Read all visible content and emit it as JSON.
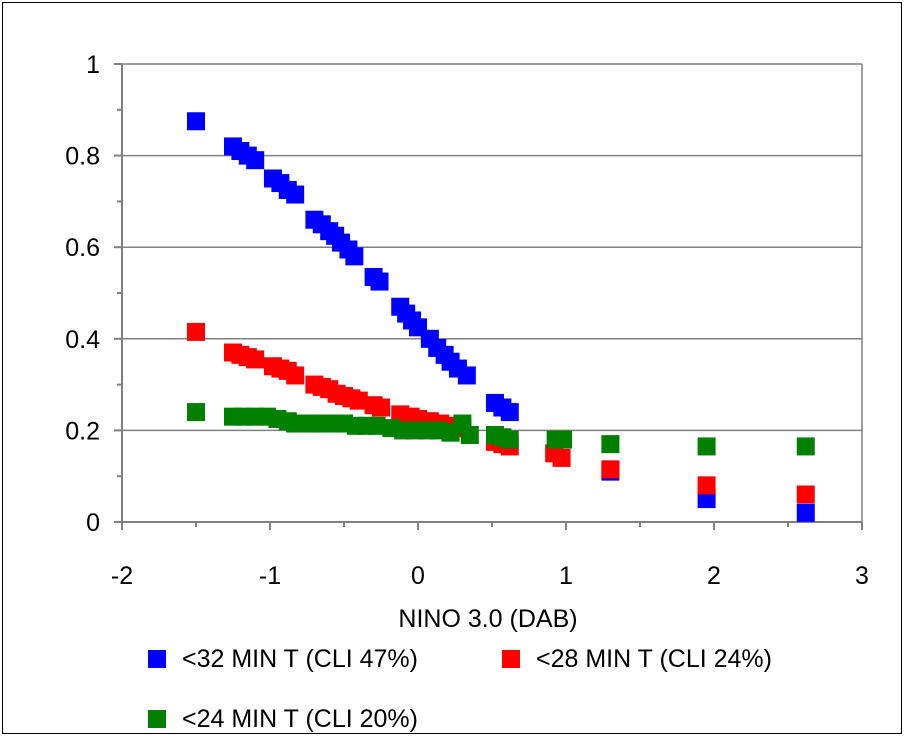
{
  "chart_data": {
    "type": "scatter",
    "title": "",
    "xlabel": "NINO 3.0 (DAB)",
    "ylabel": "",
    "xlim": [
      -2,
      3
    ],
    "ylim": [
      0,
      1
    ],
    "x_ticks": [
      "-2",
      "-1",
      "0",
      "1",
      "2",
      "3"
    ],
    "y_ticks": [
      "0",
      "0.2",
      "0.4",
      "0.6",
      "0.8",
      "1"
    ],
    "grid": "horizontal",
    "legend_position": "bottom",
    "series": [
      {
        "name": "<32 MIN T (CLI 47%)",
        "color": "#0000ff",
        "points": [
          [
            -1.5,
            0.875
          ],
          [
            -1.25,
            0.82
          ],
          [
            -1.2,
            0.81
          ],
          [
            -1.15,
            0.8
          ],
          [
            -1.1,
            0.79
          ],
          [
            -0.98,
            0.75
          ],
          [
            -0.93,
            0.74
          ],
          [
            -0.88,
            0.725
          ],
          [
            -0.83,
            0.715
          ],
          [
            -0.7,
            0.66
          ],
          [
            -0.65,
            0.65
          ],
          [
            -0.6,
            0.635
          ],
          [
            -0.56,
            0.625
          ],
          [
            -0.52,
            0.61
          ],
          [
            -0.47,
            0.595
          ],
          [
            -0.43,
            0.58
          ],
          [
            -0.3,
            0.535
          ],
          [
            -0.26,
            0.525
          ],
          [
            -0.12,
            0.47
          ],
          [
            -0.08,
            0.455
          ],
          [
            -0.04,
            0.44
          ],
          [
            0.0,
            0.425
          ],
          [
            0.08,
            0.4
          ],
          [
            0.13,
            0.38
          ],
          [
            0.18,
            0.365
          ],
          [
            0.22,
            0.35
          ],
          [
            0.27,
            0.335
          ],
          [
            0.33,
            0.32
          ],
          [
            0.52,
            0.26
          ],
          [
            0.57,
            0.25
          ],
          [
            0.62,
            0.24
          ],
          [
            1.3,
            0.11
          ],
          [
            1.95,
            0.05
          ],
          [
            2.62,
            0.02
          ]
        ]
      },
      {
        "name": "<28 MIN T (CLI 24%)",
        "color": "#ff0000",
        "points": [
          [
            -1.5,
            0.415
          ],
          [
            -1.25,
            0.37
          ],
          [
            -1.2,
            0.365
          ],
          [
            -1.15,
            0.36
          ],
          [
            -1.1,
            0.355
          ],
          [
            -0.98,
            0.34
          ],
          [
            -0.93,
            0.335
          ],
          [
            -0.88,
            0.33
          ],
          [
            -0.83,
            0.32
          ],
          [
            -0.7,
            0.3
          ],
          [
            -0.65,
            0.295
          ],
          [
            -0.6,
            0.29
          ],
          [
            -0.55,
            0.28
          ],
          [
            -0.5,
            0.275
          ],
          [
            -0.45,
            0.27
          ],
          [
            -0.4,
            0.265
          ],
          [
            -0.3,
            0.255
          ],
          [
            -0.25,
            0.25
          ],
          [
            -0.12,
            0.235
          ],
          [
            -0.05,
            0.23
          ],
          [
            0.0,
            0.225
          ],
          [
            0.08,
            0.22
          ],
          [
            0.15,
            0.215
          ],
          [
            0.22,
            0.21
          ],
          [
            0.3,
            0.205
          ],
          [
            0.52,
            0.175
          ],
          [
            0.57,
            0.17
          ],
          [
            0.62,
            0.165
          ],
          [
            0.92,
            0.15
          ],
          [
            0.97,
            0.14
          ],
          [
            1.3,
            0.115
          ],
          [
            1.95,
            0.08
          ],
          [
            2.62,
            0.06
          ]
        ]
      },
      {
        "name": "<24 MIN T (CLI 20%)",
        "color": "#008000",
        "points": [
          [
            -1.5,
            0.24
          ],
          [
            -1.25,
            0.23
          ],
          [
            -1.18,
            0.23
          ],
          [
            -1.1,
            0.23
          ],
          [
            -1.02,
            0.23
          ],
          [
            -0.95,
            0.225
          ],
          [
            -0.88,
            0.22
          ],
          [
            -0.83,
            0.215
          ],
          [
            -0.72,
            0.215
          ],
          [
            -0.65,
            0.215
          ],
          [
            -0.58,
            0.215
          ],
          [
            -0.5,
            0.215
          ],
          [
            -0.42,
            0.21
          ],
          [
            -0.35,
            0.21
          ],
          [
            -0.28,
            0.21
          ],
          [
            -0.18,
            0.205
          ],
          [
            -0.1,
            0.2
          ],
          [
            -0.02,
            0.2
          ],
          [
            0.06,
            0.2
          ],
          [
            0.14,
            0.2
          ],
          [
            0.22,
            0.195
          ],
          [
            0.3,
            0.215
          ],
          [
            0.35,
            0.19
          ],
          [
            0.52,
            0.19
          ],
          [
            0.57,
            0.185
          ],
          [
            0.62,
            0.18
          ],
          [
            0.93,
            0.18
          ],
          [
            0.98,
            0.18
          ],
          [
            1.3,
            0.17
          ],
          [
            1.95,
            0.165
          ],
          [
            2.62,
            0.165
          ]
        ]
      }
    ]
  }
}
